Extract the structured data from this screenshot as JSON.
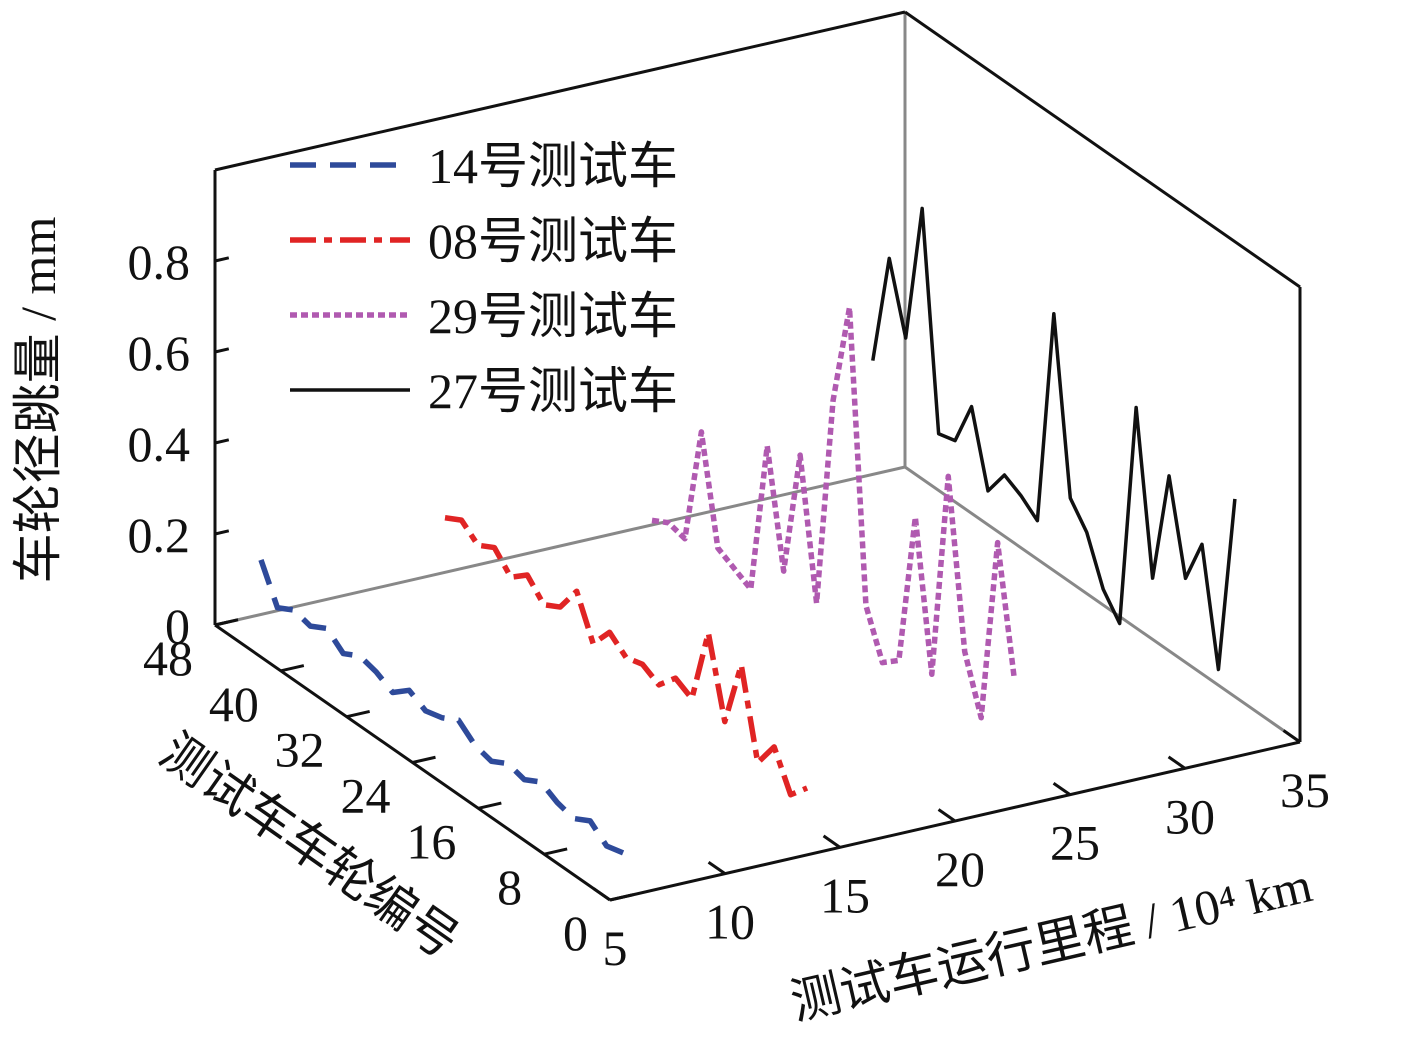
{
  "chart_data": {
    "type": "line3d",
    "zlabel": "车轮径跳量 / mm",
    "ylabel": "测试车车轮编号",
    "xlabel": "测试车运行里程 / 10⁴ km",
    "xlim": [
      5,
      35
    ],
    "xticks": [
      5,
      10,
      15,
      20,
      25,
      30,
      35
    ],
    "ylim": [
      0,
      48
    ],
    "yticks": [
      0,
      8,
      16,
      24,
      32,
      40,
      48
    ],
    "zlim": [
      0,
      1
    ],
    "zticks": [
      0,
      0.2,
      0.4,
      0.6,
      0.8
    ],
    "legend": "upper left",
    "wheels": [
      48,
      46,
      44,
      42,
      40,
      38,
      36,
      34,
      32,
      30,
      28,
      26,
      24,
      22,
      20,
      18,
      16,
      14,
      12,
      10,
      8,
      6,
      4
    ],
    "series": [
      {
        "name": "14号测试车",
        "color": "#2e4a9a",
        "dash": "dashed",
        "mileage": 7,
        "values": [
          0.12,
          0.04,
          0.06,
          0.05,
          0.07,
          0.04,
          0.06,
          0.05,
          0.03,
          0.06,
          0.04,
          0.05,
          0.07,
          0.04,
          0.03,
          0.05,
          0.04,
          0.06,
          0.04,
          0.03,
          0.05,
          0.02,
          0.03
        ]
      },
      {
        "name": "08号测试车",
        "color": "#e02424",
        "dash": "dashdot",
        "mileage": 15,
        "values": [
          0.12,
          0.14,
          0.11,
          0.13,
          0.09,
          0.12,
          0.08,
          0.1,
          0.16,
          0.07,
          0.12,
          0.09,
          0.1,
          0.08,
          0.12,
          0.1,
          0.27,
          0.1,
          0.25,
          0.06,
          0.12,
          0.04,
          0.08
        ]
      },
      {
        "name": "29号测试车",
        "color": "#b05ab0",
        "dash": "dotted",
        "mileage": 24,
        "values": [
          0.01,
          0.03,
          0.02,
          0.28,
          0.05,
          0.03,
          0.01,
          0.35,
          0.1,
          0.38,
          0.08,
          0.55,
          0.78,
          0.15,
          0.05,
          0.08,
          0.42,
          0.1,
          0.56,
          0.2,
          0.08,
          0.49,
          0.22
        ]
      },
      {
        "name": "27号测试车",
        "color": "#111111",
        "dash": "solid",
        "mileage": 33.6,
        "values": [
          0.25,
          0.5,
          0.35,
          0.66,
          0.19,
          0.2,
          0.3,
          0.14,
          0.2,
          0.18,
          0.15,
          0.63,
          0.25,
          0.2,
          0.1,
          0.05,
          0.55,
          0.2,
          0.45,
          0.25,
          0.35,
          0.1,
          0.5
        ]
      }
    ]
  }
}
